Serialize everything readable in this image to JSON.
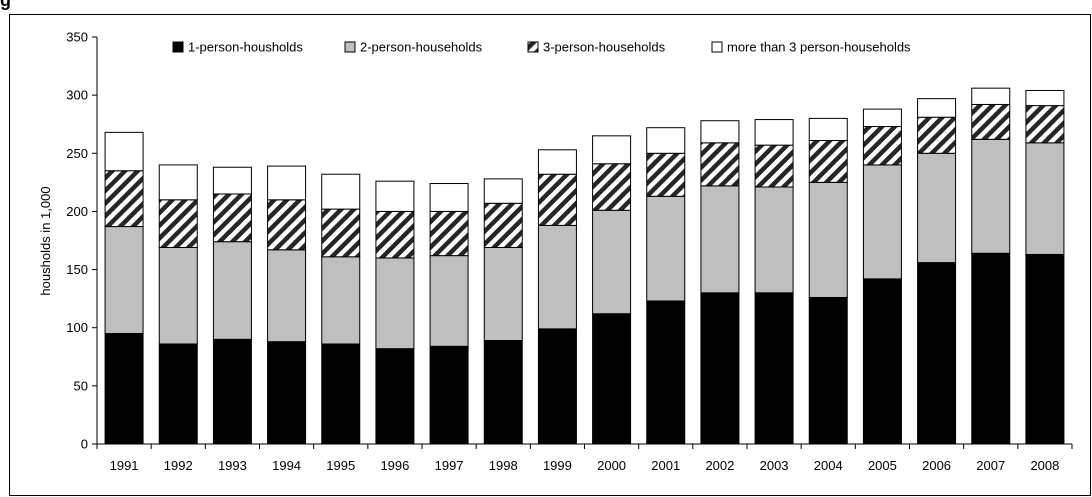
{
  "figure_label": "g",
  "chart_data": {
    "type": "bar",
    "stacked": true,
    "title": "",
    "xlabel": "",
    "ylabel": "housholds in 1,000",
    "ylim": [
      0,
      350
    ],
    "yticks": [
      0,
      50,
      100,
      150,
      200,
      250,
      300,
      350
    ],
    "grid": false,
    "legend_position": "top",
    "categories": [
      "1991",
      "1992",
      "1993",
      "1994",
      "1995",
      "1996",
      "1997",
      "1998",
      "1999",
      "2000",
      "2001",
      "2002",
      "2003",
      "2004",
      "2005",
      "2006",
      "2007",
      "2008"
    ],
    "series": [
      {
        "name": "1-person-housholds",
        "fill": "solid",
        "color": "#000000",
        "values": [
          95,
          86,
          90,
          88,
          86,
          82,
          84,
          89,
          99,
          112,
          123,
          130,
          130,
          126,
          142,
          156,
          164,
          163
        ]
      },
      {
        "name": "2-person-households",
        "fill": "solid",
        "color": "#bfbfbf",
        "values": [
          92,
          83,
          84,
          79,
          75,
          78,
          78,
          80,
          89,
          89,
          90,
          92,
          91,
          99,
          98,
          94,
          98,
          96
        ]
      },
      {
        "name": "3-person-households",
        "fill": "hatch",
        "color": "#808080",
        "values": [
          48,
          41,
          41,
          43,
          41,
          40,
          38,
          38,
          44,
          40,
          37,
          37,
          36,
          36,
          33,
          31,
          30,
          32
        ]
      },
      {
        "name": "more than 3 person-households",
        "fill": "solid",
        "color": "#ffffff",
        "values": [
          33,
          30,
          23,
          29,
          30,
          26,
          24,
          21,
          21,
          24,
          22,
          19,
          22,
          19,
          15,
          16,
          14,
          13
        ]
      }
    ]
  }
}
